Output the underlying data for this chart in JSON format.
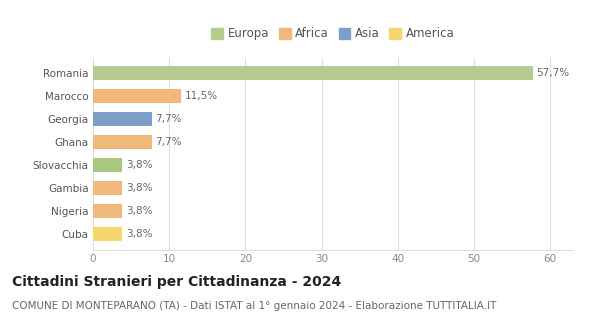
{
  "categories": [
    "Cuba",
    "Nigeria",
    "Gambia",
    "Slovacchia",
    "Ghana",
    "Georgia",
    "Marocco",
    "Romania"
  ],
  "values": [
    3.8,
    3.8,
    3.8,
    3.8,
    7.7,
    7.7,
    11.5,
    57.7
  ],
  "labels": [
    "3,8%",
    "3,8%",
    "3,8%",
    "3,8%",
    "7,7%",
    "7,7%",
    "11,5%",
    "57,7%"
  ],
  "bar_colors": [
    "#f5d76e",
    "#f0b87a",
    "#f0b87a",
    "#a8c880",
    "#f0b87a",
    "#7b9fc7",
    "#f0b87a",
    "#b5cc8e"
  ],
  "legend_labels": [
    "Europa",
    "Africa",
    "Asia",
    "America"
  ],
  "legend_colors": [
    "#b5cc8e",
    "#f0b87a",
    "#7b9fc7",
    "#f5d76e"
  ],
  "title": "Cittadini Stranieri per Cittadinanza - 2024",
  "subtitle": "COMUNE DI MONTEPARANO (TA) - Dati ISTAT al 1° gennaio 2024 - Elaborazione TUTTITALIA.IT",
  "xlim": [
    0,
    63
  ],
  "xticks": [
    0,
    10,
    20,
    30,
    40,
    50,
    60
  ],
  "background_color": "#ffffff",
  "grid_color": "#dddddd",
  "title_fontsize": 10,
  "subtitle_fontsize": 7.5,
  "label_fontsize": 7.5,
  "tick_fontsize": 7.5,
  "legend_fontsize": 8.5
}
